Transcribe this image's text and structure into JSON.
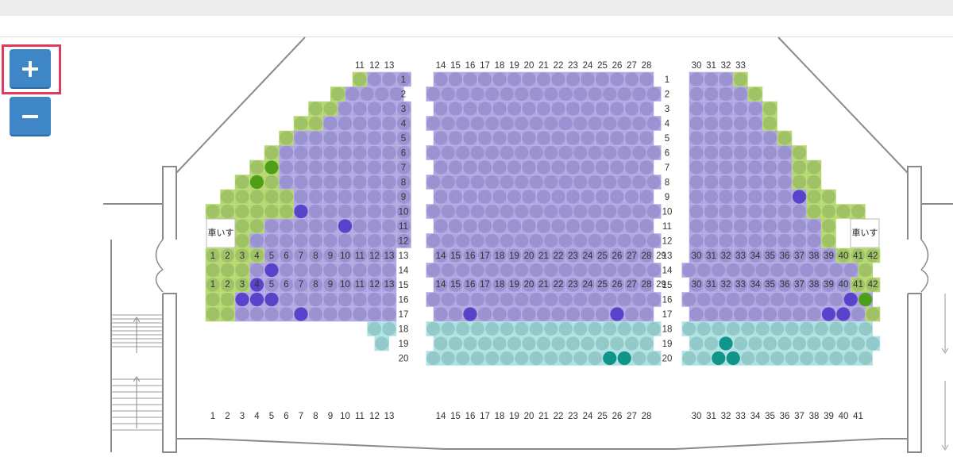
{
  "controls": {
    "zoom_in": {
      "icon": "plus-icon",
      "highlighted": true,
      "highlight_color": "#e03a5a"
    },
    "zoom_out": {
      "icon": "minus-icon"
    },
    "button_color": "#3e86c6"
  },
  "legend_colors": {
    "zone_green": "#b6d76f",
    "zone_purple": "#b0a7e1",
    "zone_cyan": "#b1e2e3",
    "seat_green": "#9fc266",
    "seat_purple": "#9a92d1",
    "seat_cyan": "#93c9c9",
    "seat_selected_purple": "#5843cb",
    "seat_selected_green": "#4d9f17",
    "seat_selected_teal": "#10958a"
  },
  "wheelchair_label": "車いす",
  "seat_map": {
    "left_upper": {
      "top_numbers": [
        "11",
        "12",
        "13"
      ],
      "bottom_numbers": [
        "1",
        "2",
        "3",
        "4",
        "5",
        "6",
        "7",
        "8",
        "9",
        "10",
        "11",
        "12",
        "13"
      ],
      "row_labels": [
        "1",
        "2",
        "3",
        "4",
        "5",
        "6",
        "7",
        "8",
        "9",
        "10",
        "11",
        "12"
      ]
    },
    "center_upper": {
      "top_numbers": [
        "14",
        "15",
        "16",
        "17",
        "18",
        "19",
        "20",
        "21",
        "22",
        "23",
        "24",
        "25",
        "26",
        "27",
        "28"
      ],
      "bottom_numbers": [
        "14",
        "15",
        "16",
        "17",
        "18",
        "19",
        "20",
        "21",
        "22",
        "23",
        "24",
        "25",
        "26",
        "27",
        "28",
        "29"
      ],
      "row_labels": [
        "1",
        "2",
        "3",
        "4",
        "5",
        "6",
        "7",
        "8",
        "9",
        "10",
        "11",
        "12"
      ]
    },
    "right_upper": {
      "top_numbers": [
        "30",
        "31",
        "32",
        "33"
      ],
      "bottom_numbers": [
        "30",
        "31",
        "32",
        "33",
        "34",
        "35",
        "36",
        "37",
        "38",
        "39",
        "40",
        "41",
        "42"
      ]
    },
    "left_lower": {
      "top_numbers": [
        "1",
        "2",
        "3",
        "4",
        "5",
        "6",
        "7",
        "8",
        "9",
        "10",
        "11",
        "12",
        "13"
      ],
      "bottom_numbers": [
        "1",
        "2",
        "3",
        "4",
        "5",
        "6",
        "7",
        "8",
        "9",
        "10",
        "11",
        "12",
        "13"
      ],
      "row_labels": [
        "13",
        "14",
        "15",
        "16",
        "17",
        "18",
        "19",
        "20"
      ]
    },
    "center_lower": {
      "top_numbers": [
        "14",
        "15",
        "16",
        "17",
        "18",
        "19",
        "20",
        "21",
        "22",
        "23",
        "24",
        "25",
        "26",
        "27",
        "28",
        "29"
      ],
      "bottom_numbers": [
        "14",
        "15",
        "16",
        "17",
        "18",
        "19",
        "20",
        "21",
        "22",
        "23",
        "24",
        "25",
        "26",
        "27",
        "28"
      ],
      "row_labels": [
        "13",
        "14",
        "15",
        "16",
        "17",
        "18",
        "19",
        "20"
      ]
    },
    "right_lower": {
      "top_numbers": [
        "30",
        "31",
        "32",
        "33",
        "34",
        "35",
        "36",
        "37",
        "38",
        "39",
        "40",
        "41",
        "42"
      ],
      "bottom_numbers": [
        "30",
        "31",
        "32",
        "33",
        "34",
        "35",
        "36",
        "37",
        "38",
        "39",
        "40",
        "41"
      ]
    }
  }
}
